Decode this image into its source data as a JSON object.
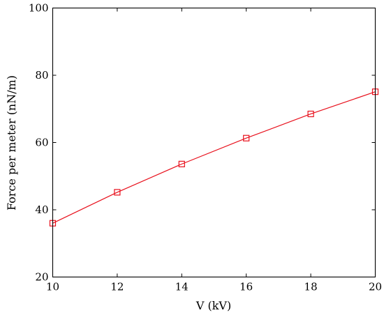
{
  "chart_data": {
    "type": "line",
    "title": "",
    "xlabel": "V (kV)",
    "ylabel": "Force per meter (nN/m)",
    "xlim": [
      10,
      20
    ],
    "ylim": [
      20,
      100
    ],
    "xticks": [
      10,
      12,
      14,
      16,
      18,
      20
    ],
    "yticks": [
      20,
      40,
      60,
      80,
      100
    ],
    "x_tick_labels": [
      "10",
      "12",
      "14",
      "16",
      "18",
      "20"
    ],
    "y_tick_labels": [
      "20",
      "40",
      "60",
      "80",
      "100"
    ],
    "grid": false,
    "legend": "none",
    "series": [
      {
        "color": "#e8101c",
        "marker": "square",
        "x": [
          10,
          12,
          14,
          16,
          18,
          20
        ],
        "y": [
          36.0,
          45.2,
          53.6,
          61.3,
          68.5,
          75.1
        ]
      }
    ]
  }
}
